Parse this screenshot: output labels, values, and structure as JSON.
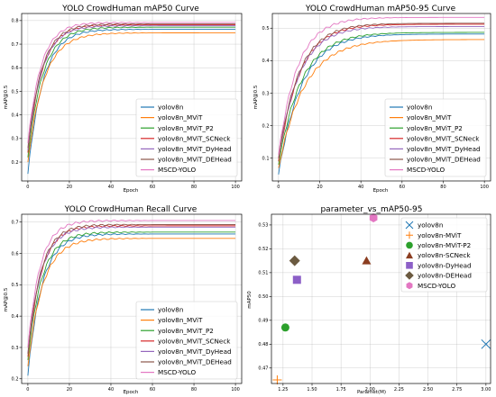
{
  "chart_data": [
    {
      "type": "line",
      "title": "YOLO CrowdHuman mAP50 Curve",
      "xlabel": "Epoch",
      "ylabel": "mAP@0.5",
      "xlim": [
        -3,
        103
      ],
      "ylim": [
        0.12,
        0.83
      ],
      "xticks": [
        "0",
        "20",
        "40",
        "60",
        "80",
        "100"
      ],
      "yticks": [
        "0.2",
        "0.3",
        "0.4",
        "0.5",
        "0.6",
        "0.7",
        "0.8"
      ],
      "grid": true,
      "legend": "bottom-right",
      "series": [
        {
          "name": "yolov8n",
          "color": "#1f77b4",
          "start": 0.15,
          "final": 0.763,
          "k": 0.14
        },
        {
          "name": "yolov8n_MViT",
          "color": "#ff7f0e",
          "start": 0.2,
          "final": 0.748,
          "k": 0.13
        },
        {
          "name": "yolov8n_MViT_P2",
          "color": "#2ca02c",
          "start": 0.22,
          "final": 0.772,
          "k": 0.14
        },
        {
          "name": "yolov8n_MViT_SCNeck",
          "color": "#d62728",
          "start": 0.24,
          "final": 0.782,
          "k": 0.15
        },
        {
          "name": "yolov8n_MViT_DyHead",
          "color": "#9467bd",
          "start": 0.25,
          "final": 0.778,
          "k": 0.15
        },
        {
          "name": "yolov8n_MViT_DEHead",
          "color": "#8c564b",
          "start": 0.26,
          "final": 0.786,
          "k": 0.15
        },
        {
          "name": "MSCD-YOLO",
          "color": "#e377c2",
          "start": 0.28,
          "final": 0.792,
          "k": 0.16
        }
      ]
    },
    {
      "type": "line",
      "title": "YOLO CrowdHuman mAP50-95 Curve",
      "xlabel": "Epoch",
      "ylabel": "mAP@0.5",
      "xlim": [
        -3,
        103
      ],
      "ylim": [
        0.03,
        0.545
      ],
      "xticks": [
        "0",
        "20",
        "40",
        "60",
        "80",
        "100"
      ],
      "yticks": [
        "0.1",
        "0.2",
        "0.3",
        "0.4",
        "0.5"
      ],
      "grid": true,
      "legend": "bottom-right",
      "series": [
        {
          "name": "yolov8n",
          "color": "#1f77b4",
          "start": 0.05,
          "final": 0.482,
          "k": 0.09
        },
        {
          "name": "yolov8n_MViT",
          "color": "#ff7f0e",
          "start": 0.07,
          "final": 0.465,
          "k": 0.08
        },
        {
          "name": "yolov8n_MViT_P2",
          "color": "#2ca02c",
          "start": 0.08,
          "final": 0.487,
          "k": 0.09
        },
        {
          "name": "yolov8n_MViT_SCNeck",
          "color": "#d62728",
          "start": 0.09,
          "final": 0.512,
          "k": 0.1
        },
        {
          "name": "yolov8n_MViT_DyHead",
          "color": "#9467bd",
          "start": 0.1,
          "final": 0.505,
          "k": 0.1
        },
        {
          "name": "yolov8n_MViT_DEHead",
          "color": "#8c564b",
          "start": 0.1,
          "final": 0.515,
          "k": 0.1
        },
        {
          "name": "MSCD-YOLO",
          "color": "#e377c2",
          "start": 0.11,
          "final": 0.533,
          "k": 0.11
        }
      ]
    },
    {
      "type": "line",
      "title": "YOLO CrowdHuman Recall Curve",
      "xlabel": "Epoch",
      "ylabel": "mAP@0.5",
      "xlim": [
        -3,
        103
      ],
      "ylim": [
        0.185,
        0.725
      ],
      "xticks": [
        "0",
        "20",
        "40",
        "60",
        "80",
        "100"
      ],
      "yticks": [
        "0.2",
        "0.3",
        "0.4",
        "0.5",
        "0.6",
        "0.7"
      ],
      "grid": true,
      "legend": "bottom-right",
      "series": [
        {
          "name": "yolov8n",
          "color": "#1f77b4",
          "start": 0.21,
          "final": 0.662,
          "k": 0.15
        },
        {
          "name": "yolov8n_MViT",
          "color": "#ff7f0e",
          "start": 0.24,
          "final": 0.648,
          "k": 0.14
        },
        {
          "name": "yolov8n_MViT_P2",
          "color": "#2ca02c",
          "start": 0.26,
          "final": 0.668,
          "k": 0.15
        },
        {
          "name": "yolov8n_MViT_SCNeck",
          "color": "#d62728",
          "start": 0.27,
          "final": 0.688,
          "k": 0.16
        },
        {
          "name": "yolov8n_MViT_DyHead",
          "color": "#9467bd",
          "start": 0.28,
          "final": 0.684,
          "k": 0.16
        },
        {
          "name": "yolov8n_MViT_DEHead",
          "color": "#8c564b",
          "start": 0.28,
          "final": 0.692,
          "k": 0.16
        },
        {
          "name": "MSCD-YOLO",
          "color": "#e377c2",
          "start": 0.3,
          "final": 0.705,
          "k": 0.17
        }
      ]
    },
    {
      "type": "scatter",
      "title": "parameter_vs_mAP50-95",
      "xlabel": "Paramet(M)",
      "ylabel": "mAP50",
      "xlim": [
        1.15,
        3.04
      ],
      "ylim": [
        0.4635,
        0.5345
      ],
      "xticks": [
        "1.25",
        "1.50",
        "1.75",
        "2.00",
        "2.25",
        "2.50",
        "2.75",
        "3.00"
      ],
      "yticks": [
        "0.47",
        "0.48",
        "0.49",
        "0.50",
        "0.51",
        "0.52",
        "0.53"
      ],
      "grid": true,
      "legend": "top-right",
      "points": [
        {
          "name": "yolov8n",
          "color": "#1f77b4",
          "marker": "x",
          "x": 3.0,
          "y": 0.48
        },
        {
          "name": "yolov8n-MViT",
          "color": "#ff7f0e",
          "marker": "+",
          "x": 1.2,
          "y": 0.465
        },
        {
          "name": "yolov8n-MViT-P2",
          "color": "#2ca02c",
          "marker": "o",
          "x": 1.27,
          "y": 0.487
        },
        {
          "name": "yolov8n-SCNeck",
          "color": "#8b3d20",
          "marker": "^",
          "x": 1.97,
          "y": 0.515
        },
        {
          "name": "yolov8n-DyHead",
          "color": "#8c5fc7",
          "marker": "s",
          "x": 1.37,
          "y": 0.507
        },
        {
          "name": "yolov8n-DEHead",
          "color": "#6b5a40",
          "marker": "D",
          "x": 1.35,
          "y": 0.515
        },
        {
          "name": "MSCD-YOLO",
          "color": "#e377c2",
          "marker": "h",
          "x": 2.03,
          "y": 0.533
        }
      ]
    }
  ]
}
